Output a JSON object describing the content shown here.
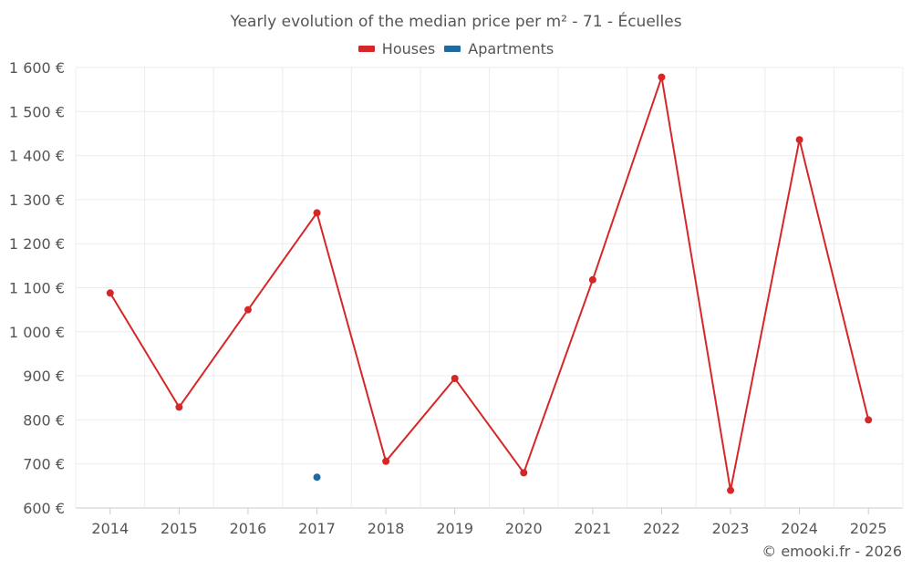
{
  "chart_data": {
    "type": "line",
    "title": "Yearly evolution of the median price per m² - 71 - Écuelles",
    "categories": [
      "2014",
      "2015",
      "2016",
      "2017",
      "2018",
      "2019",
      "2020",
      "2021",
      "2022",
      "2023",
      "2024",
      "2025"
    ],
    "series": [
      {
        "name": "Houses",
        "color": "#d62728",
        "values": [
          1088,
          829,
          1050,
          1270,
          706,
          894,
          680,
          1118,
          1578,
          640,
          1436,
          800
        ]
      },
      {
        "name": "Apartments",
        "color": "#1f6b9e",
        "values": [
          null,
          null,
          null,
          670,
          null,
          null,
          null,
          null,
          null,
          null,
          null,
          null
        ]
      }
    ],
    "ylim": [
      600,
      1600
    ],
    "yticks": [
      600,
      700,
      800,
      900,
      1000,
      1100,
      1200,
      1300,
      1400,
      1500,
      1600
    ],
    "ytick_labels": [
      "600 €",
      "700 €",
      "800 €",
      "900 €",
      "1 000 €",
      "1 100 €",
      "1 200 €",
      "1 300 €",
      "1 400 €",
      "1 500 €",
      "1 600 €"
    ],
    "grid": true,
    "legend_position": "top-center"
  },
  "credit": "© emooki.fr - 2026"
}
